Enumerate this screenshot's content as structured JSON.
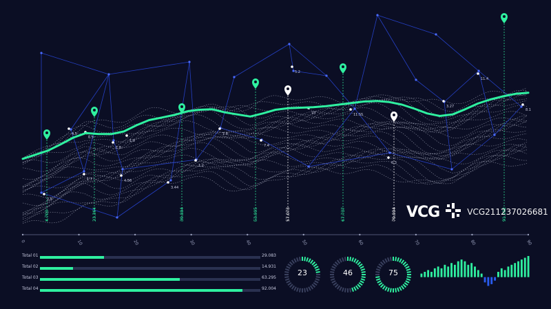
{
  "chart_data": [
    {
      "type": "line",
      "x_ticks": [
        "0",
        "10",
        "20",
        "30",
        "40",
        "50",
        "60",
        "70",
        "80",
        "90"
      ],
      "main_line": {
        "color": "#2ff0a0",
        "points": [
          [
            0,
            233
          ],
          [
            5,
            225
          ],
          [
            10,
            217
          ],
          [
            15,
            205
          ],
          [
            20,
            192
          ],
          [
            25,
            183
          ],
          [
            30,
            185
          ],
          [
            35,
            185
          ],
          [
            40,
            180
          ],
          [
            45,
            168
          ],
          [
            50,
            158
          ],
          [
            55,
            153
          ],
          [
            60,
            148
          ],
          [
            65,
            141
          ],
          [
            70,
            138
          ],
          [
            75,
            137
          ],
          [
            80,
            143
          ],
          [
            85,
            147
          ],
          [
            90,
            151
          ],
          [
            95,
            145
          ],
          [
            100,
            138
          ],
          [
            105,
            135
          ],
          [
            110,
            134
          ],
          [
            115,
            133
          ],
          [
            120,
            131
          ],
          [
            125,
            128
          ],
          [
            130,
            125
          ],
          [
            135,
            122
          ],
          [
            140,
            121
          ],
          [
            145,
            123
          ],
          [
            150,
            128
          ],
          [
            155,
            136
          ],
          [
            160,
            145
          ],
          [
            165,
            150
          ],
          [
            170,
            147
          ],
          [
            175,
            137
          ],
          [
            180,
            126
          ],
          [
            185,
            118
          ],
          [
            190,
            112
          ],
          [
            195,
            107
          ],
          [
            200,
            105
          ]
        ]
      },
      "markers": [
        {
          "label": "4.703",
          "highlight": true
        },
        {
          "label": "23.364",
          "highlight": true
        },
        {
          "label": "39.884",
          "highlight": true
        },
        {
          "label": "53.005",
          "highlight": true
        },
        {
          "label": "57.073",
          "highlight": false
        },
        {
          "label": "67.737",
          "highlight": true
        },
        {
          "label": "79.004",
          "highlight": false
        },
        {
          "label": "91.002",
          "highlight": true
        }
      ],
      "node_labels": [
        "4.5",
        "1.7",
        "1.8",
        "4.56",
        "3.44",
        "1.2",
        "1.8",
        "7.4",
        "5.2",
        "10",
        "11.55",
        "6.3",
        "3.27",
        "11.4",
        "8.1",
        "2.5",
        "6.5",
        "1.9"
      ]
    },
    {
      "type": "bar",
      "categories": [
        "Total 01",
        "Total 02",
        "Total 03",
        "Total 04"
      ],
      "values": [
        29.083,
        14.931,
        63.295,
        92.004
      ],
      "display_values": [
        "29.083",
        "14.931",
        "63.295",
        "92.004"
      ],
      "xlim": [
        0,
        100
      ],
      "color": "#2ff0a0"
    },
    {
      "type": "pie",
      "categories": [
        "ring-1",
        "ring-2",
        "ring-3"
      ],
      "values": [
        23,
        46,
        75
      ],
      "max": 100,
      "color": "#2ff0a0",
      "track_color": "#39405e"
    },
    {
      "type": "bar",
      "values": [
        2,
        3,
        4,
        3,
        5,
        6,
        5,
        7,
        6,
        8,
        7,
        9,
        10,
        9,
        7,
        8,
        6,
        4,
        2,
        -3,
        -5,
        -4,
        -2,
        3,
        5,
        4,
        6,
        7,
        8,
        9,
        10,
        11,
        12
      ],
      "ylim": [
        -6,
        12
      ],
      "colors": {
        "positive": "#2ff0a0",
        "negative": "#2a5cf0"
      }
    }
  ],
  "watermark": {
    "mark": "VCG",
    "code": "VCG211237026681"
  },
  "theme": {
    "background": "#0b0e24",
    "network": "#2a49e0",
    "wave": "#cfd3e6",
    "accent": "#2ff0a0"
  }
}
